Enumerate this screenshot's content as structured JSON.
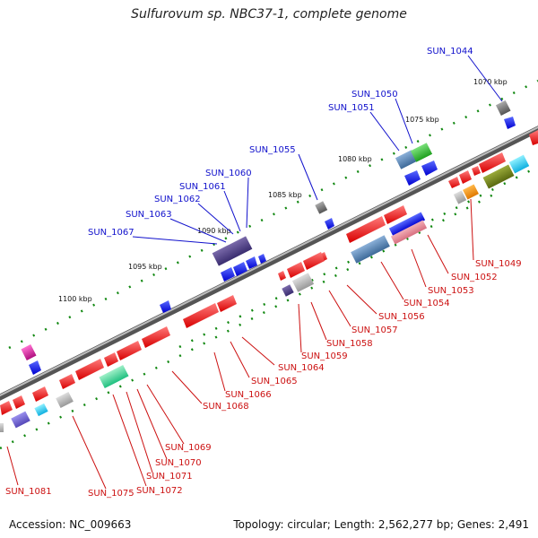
{
  "title": "Sulfurovum sp. NBC37-1, complete genome",
  "footer": {
    "accession": "Accession: NC_009663",
    "topology": "Topology: circular; Length: 2,562,277 bp; Genes: 2,491"
  },
  "kbp_ticks": [
    "1070 kbp",
    "1075 kbp",
    "1080 kbp",
    "1085 kbp",
    "1090 kbp",
    "1095 kbp",
    "1100 kbp"
  ],
  "colors": {
    "forward_label": "#1111cc",
    "reverse_label": "#cc1111",
    "backbone": "#777777",
    "tick": "#118811"
  },
  "genes_top": [
    "SUN_1044",
    "SUN_1050",
    "SUN_1051",
    "SUN_1055",
    "SUN_1060",
    "SUN_1061",
    "SUN_1062",
    "SUN_1063",
    "SUN_1067"
  ],
  "genes_bottom": [
    "SUN_1049",
    "SUN_1052",
    "SUN_1053",
    "SUN_1054",
    "SUN_1056",
    "SUN_1057",
    "SUN_1058",
    "SUN_1059",
    "SUN_1064",
    "SUN_1065",
    "SUN_1066",
    "SUN_1068",
    "SUN_1069",
    "SUN_1070",
    "SUN_1071",
    "SUN_1072",
    "SUN_1075",
    "SUN_1081"
  ]
}
